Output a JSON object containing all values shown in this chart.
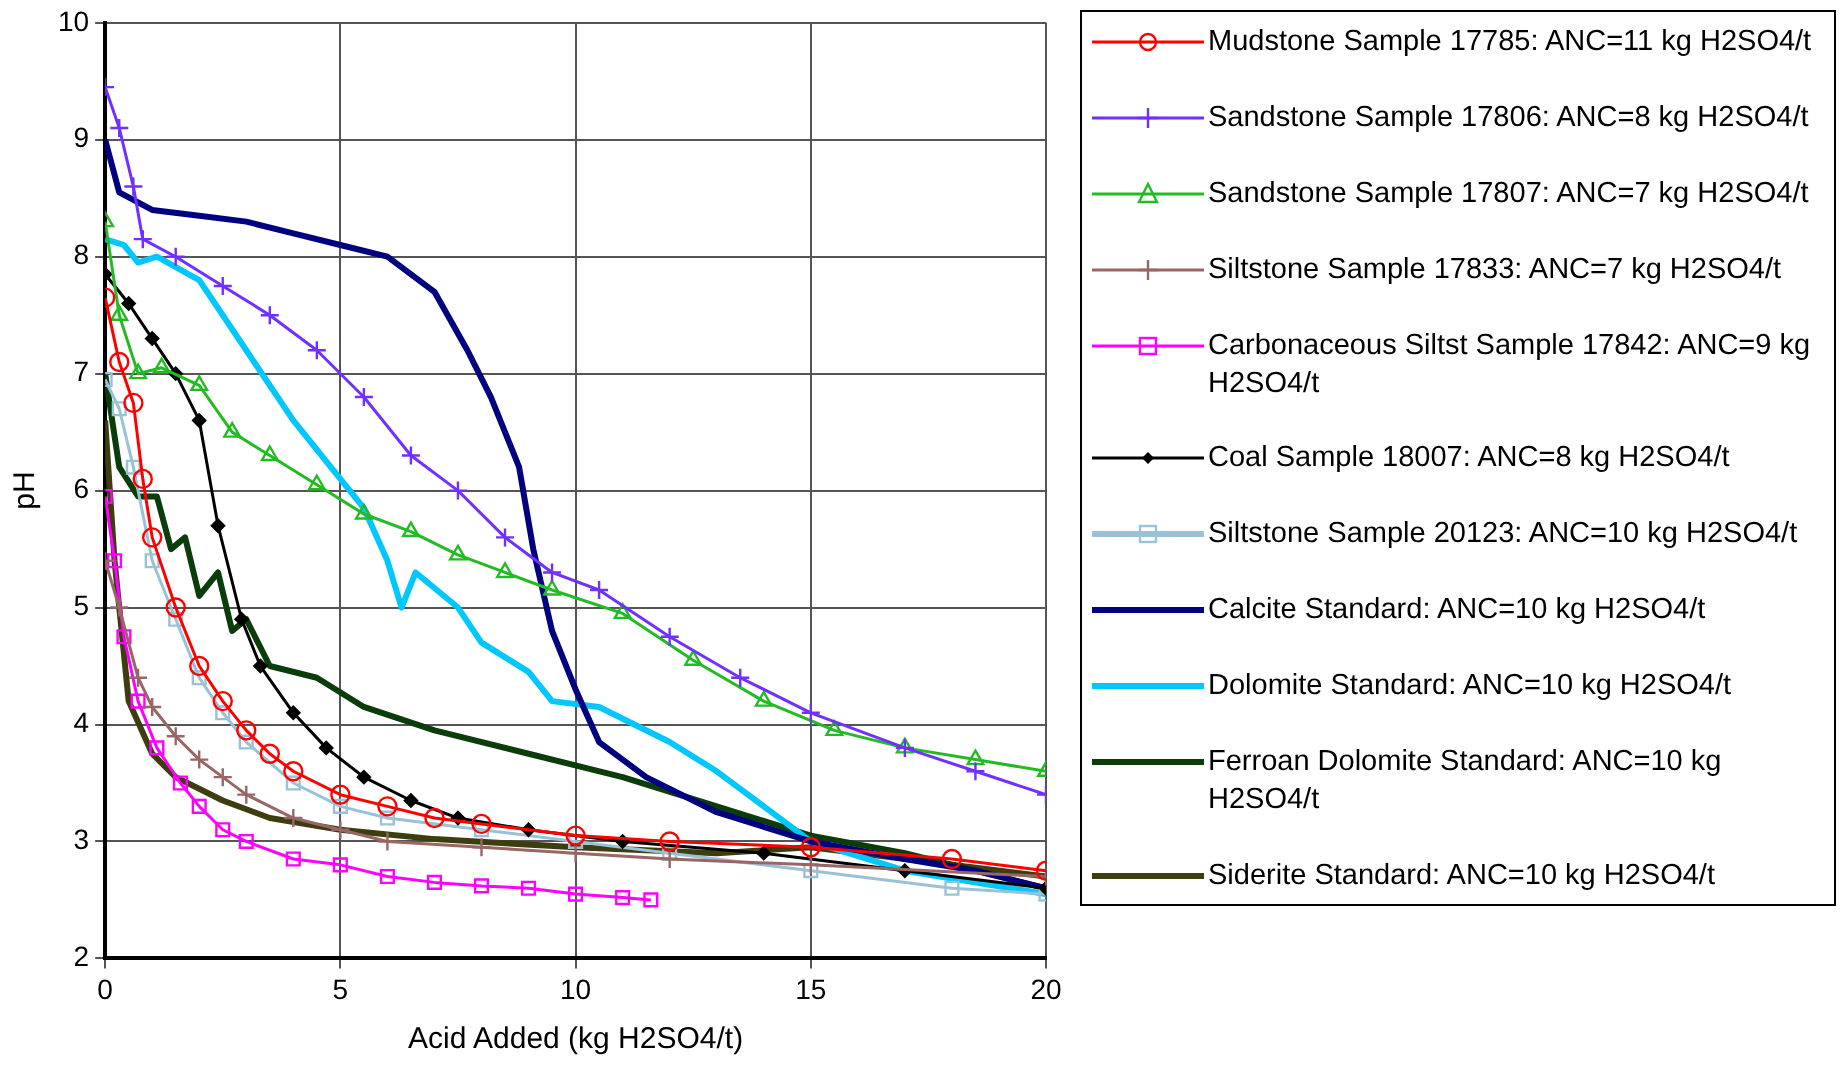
{
  "chart_data": {
    "type": "line",
    "xlabel": "Acid Added (kg H2SO4/t)",
    "ylabel": "pH",
    "xlim": [
      0,
      20
    ],
    "xticks": [
      0,
      5,
      10,
      15,
      20
    ],
    "ylim": [
      2,
      10
    ],
    "yticks": [
      2,
      3,
      4,
      5,
      6,
      7,
      8,
      9,
      10
    ],
    "grid": true,
    "legend": "right",
    "line_style": "solid",
    "series": [
      {
        "name": "Mudstone Sample 17785: ANC=11 kg H2SO4/t",
        "color": "#ff0000",
        "marker": "circle",
        "x": [
          0,
          0.3,
          0.6,
          0.8,
          1,
          1.5,
          2,
          2.5,
          3,
          3.5,
          4,
          5,
          6,
          7,
          8,
          10,
          12,
          15,
          18,
          20
        ],
        "values": [
          7.65,
          7.1,
          6.75,
          6.1,
          5.6,
          5.0,
          4.5,
          4.2,
          3.95,
          3.75,
          3.6,
          3.4,
          3.3,
          3.2,
          3.15,
          3.05,
          3.0,
          2.95,
          2.85,
          2.75
        ]
      },
      {
        "name": "Sandstone Sample 17806: ANC=8 kg H2SO4/t",
        "color": "#7030ff",
        "marker": "cross",
        "x": [
          0,
          0.3,
          0.6,
          0.8,
          1.5,
          2.5,
          3.5,
          4.5,
          5.5,
          6.5,
          7.5,
          8.5,
          9.5,
          10.5,
          12,
          13.5,
          15,
          17,
          18.5,
          20
        ],
        "values": [
          9.45,
          9.1,
          8.6,
          8.15,
          8.0,
          7.75,
          7.5,
          7.2,
          6.8,
          6.3,
          6.0,
          5.6,
          5.3,
          5.15,
          4.75,
          4.4,
          4.1,
          3.8,
          3.6,
          3.4
        ]
      },
      {
        "name": "Sandstone Sample 17807: ANC=7 kg H2SO4/t",
        "color": "#22bb22",
        "marker": "triangle",
        "x": [
          0,
          0.3,
          0.7,
          1.2,
          2,
          2.7,
          3.5,
          4.5,
          5.5,
          6.5,
          7.5,
          8.5,
          9.5,
          11,
          12.5,
          14,
          15.5,
          17,
          18.5,
          20
        ],
        "values": [
          8.3,
          7.5,
          7.0,
          7.05,
          6.9,
          6.5,
          6.3,
          6.05,
          5.8,
          5.65,
          5.45,
          5.3,
          5.15,
          4.95,
          4.55,
          4.2,
          3.95,
          3.8,
          3.7,
          3.6
        ]
      },
      {
        "name": "Siltstone Sample 17833: ANC=7 kg H2SO4/t",
        "color": "#996666",
        "marker": "cross",
        "x": [
          0,
          0.3,
          0.7,
          1,
          1.5,
          2,
          2.5,
          3,
          4,
          5,
          6,
          8,
          10,
          12,
          15,
          20
        ],
        "values": [
          5.4,
          5.0,
          4.4,
          4.15,
          3.9,
          3.7,
          3.55,
          3.4,
          3.2,
          3.1,
          3.0,
          2.95,
          2.9,
          2.85,
          2.8,
          2.7
        ]
      },
      {
        "name": "Carbonaceous Siltst Sample 17842: ANC=9 kg H2SO4/t",
        "color": "#ff00ff",
        "marker": "square",
        "x": [
          0,
          0.2,
          0.4,
          0.7,
          1.1,
          1.6,
          2,
          2.5,
          3,
          4,
          5,
          6,
          7,
          8,
          9,
          10,
          11,
          11.6
        ],
        "values": [
          5.95,
          5.4,
          4.75,
          4.2,
          3.8,
          3.5,
          3.3,
          3.1,
          3.0,
          2.85,
          2.8,
          2.7,
          2.65,
          2.62,
          2.6,
          2.55,
          2.52,
          2.5
        ]
      },
      {
        "name": "Coal Sample 18007: ANC=8 kg H2SO4/t",
        "color": "#000000",
        "marker": "diamond",
        "x": [
          0,
          0.5,
          1,
          1.5,
          2,
          2.4,
          2.9,
          3.3,
          4,
          4.7,
          5.5,
          6.5,
          7.5,
          9,
          11,
          14,
          17,
          20
        ],
        "values": [
          7.85,
          7.6,
          7.3,
          7.0,
          6.6,
          5.7,
          4.9,
          4.5,
          4.1,
          3.8,
          3.55,
          3.35,
          3.2,
          3.1,
          3.0,
          2.9,
          2.75,
          2.6
        ]
      },
      {
        "name": "Siltstone Sample 20123: ANC=10 kg H2SO4/t",
        "color": "#99c2d6",
        "marker": "square",
        "x": [
          0,
          0.3,
          0.6,
          1,
          1.5,
          2,
          2.5,
          3,
          4,
          5,
          6,
          8,
          10,
          12,
          15,
          18,
          20
        ],
        "values": [
          6.95,
          6.7,
          6.2,
          5.4,
          4.9,
          4.4,
          4.1,
          3.85,
          3.5,
          3.3,
          3.2,
          3.1,
          3.0,
          2.9,
          2.75,
          2.6,
          2.55
        ]
      },
      {
        "name": "Calcite Standard: ANC=10 kg H2SO4/t",
        "color": "#000080",
        "marker": "none",
        "x": [
          0,
          0.3,
          1,
          2,
          3,
          4,
          5,
          6,
          7,
          7.7,
          8.2,
          8.8,
          9.1,
          9.5,
          10,
          10.5,
          11.5,
          13,
          15,
          17,
          18.5,
          20
        ],
        "values": [
          9.0,
          8.55,
          8.4,
          8.35,
          8.3,
          8.2,
          8.1,
          8.0,
          7.7,
          7.2,
          6.8,
          6.2,
          5.5,
          4.8,
          4.3,
          3.85,
          3.55,
          3.25,
          3.0,
          2.85,
          2.75,
          2.6
        ]
      },
      {
        "name": "Dolomite Standard: ANC=10 kg H2SO4/t",
        "color": "#00c8ff",
        "marker": "none",
        "x": [
          0,
          0.4,
          0.7,
          1.1,
          2,
          3,
          4,
          5,
          5.5,
          6,
          6.3,
          6.6,
          7.5,
          8,
          9,
          9.5,
          10.5,
          12,
          13,
          14,
          15,
          17,
          20
        ],
        "values": [
          8.15,
          8.1,
          7.95,
          8.0,
          7.8,
          7.2,
          6.6,
          6.1,
          5.85,
          5.4,
          5.0,
          5.3,
          5.0,
          4.7,
          4.45,
          4.2,
          4.15,
          3.85,
          3.6,
          3.3,
          3.0,
          2.75,
          2.55
        ]
      },
      {
        "name": "Ferroan Dolomite Standard: ANC=10 kg H2SO4/t",
        "color": "#0a3d0a",
        "marker": "none",
        "x": [
          0,
          0.3,
          0.7,
          1.1,
          1.4,
          1.7,
          2,
          2.4,
          2.7,
          3,
          3.5,
          4.5,
          5.5,
          7,
          9,
          11,
          13,
          15,
          17,
          20
        ],
        "values": [
          7.0,
          6.2,
          5.95,
          5.95,
          5.5,
          5.6,
          5.1,
          5.3,
          4.8,
          4.9,
          4.5,
          4.4,
          4.15,
          3.95,
          3.75,
          3.55,
          3.3,
          3.05,
          2.9,
          2.6
        ]
      },
      {
        "name": "Siderite Standard: ANC=10 kg H2SO4/t",
        "color": "#3d3d10",
        "marker": "none",
        "x": [
          0,
          0.2,
          0.5,
          1,
          1.5,
          2.5,
          3.5,
          5,
          7,
          10,
          13,
          15,
          18,
          20
        ],
        "values": [
          6.6,
          5.4,
          4.2,
          3.75,
          3.55,
          3.35,
          3.2,
          3.1,
          3.02,
          2.95,
          2.9,
          2.95,
          2.8,
          2.7
        ]
      }
    ]
  }
}
